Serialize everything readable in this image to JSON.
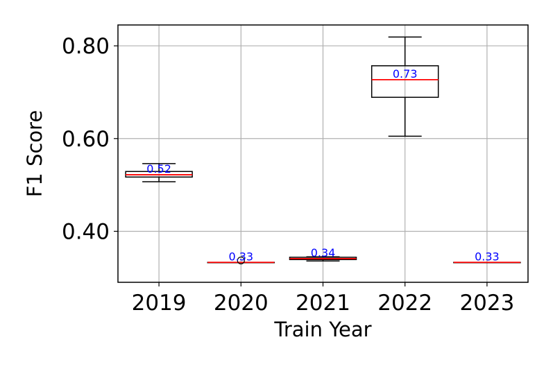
{
  "chart_data": {
    "type": "box",
    "xlabel": "Train Year",
    "ylabel": "F1 Score",
    "categories": [
      "2019",
      "2020",
      "2021",
      "2022",
      "2023"
    ],
    "ylim": [
      0.29,
      0.845
    ],
    "yticks": [
      0.4,
      0.6,
      0.8
    ],
    "ytick_labels": [
      "0.40",
      "0.60",
      "0.80"
    ],
    "grid": true,
    "boxes": [
      {
        "category": "2019",
        "whisker_low": 0.507,
        "q1": 0.517,
        "median": 0.522,
        "q3": 0.529,
        "whisker_high": 0.546,
        "outliers": [],
        "label": "0.52"
      },
      {
        "category": "2020",
        "whisker_low": 0.333,
        "q1": 0.333,
        "median": 0.333,
        "q3": 0.333,
        "whisker_high": 0.333,
        "outliers": [
          0.337
        ],
        "label": "0.33"
      },
      {
        "category": "2021",
        "whisker_low": 0.336,
        "q1": 0.339,
        "median": 0.341,
        "q3": 0.344,
        "whisker_high": 0.345,
        "outliers": [],
        "label": "0.34"
      },
      {
        "category": "2022",
        "whisker_low": 0.605,
        "q1": 0.689,
        "median": 0.727,
        "q3": 0.757,
        "whisker_high": 0.819,
        "outliers": [],
        "label": "0.73"
      },
      {
        "category": "2023",
        "whisker_low": 0.333,
        "q1": 0.333,
        "median": 0.333,
        "q3": 0.333,
        "whisker_high": 0.333,
        "outliers": [],
        "label": "0.33"
      }
    ],
    "colors": {
      "box": "#000000",
      "median": "#ff0000",
      "label": "#0000ff",
      "grid": "#b0b0b0"
    }
  }
}
